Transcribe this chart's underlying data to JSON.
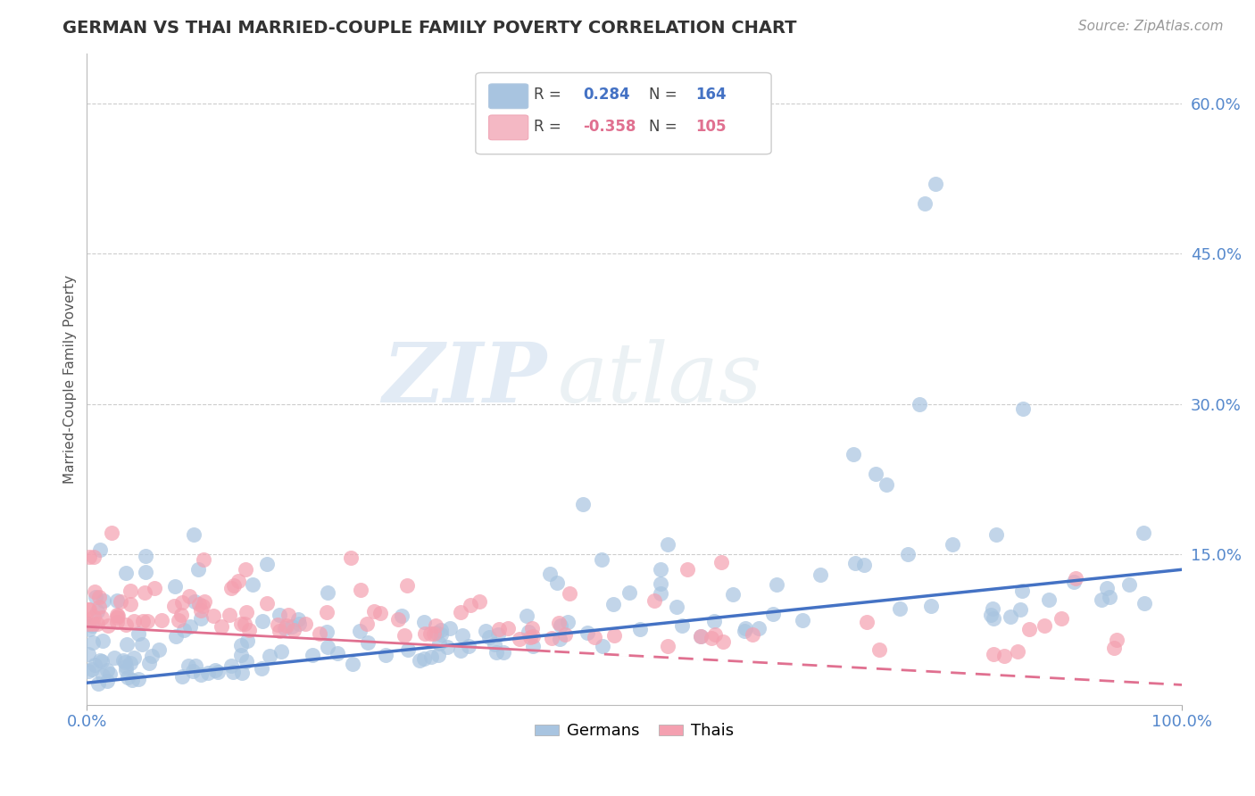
{
  "title": "GERMAN VS THAI MARRIED-COUPLE FAMILY POVERTY CORRELATION CHART",
  "source": "Source: ZipAtlas.com",
  "ylabel": "Married-Couple Family Poverty",
  "xlim": [
    0.0,
    1.0
  ],
  "ylim": [
    0.0,
    0.65
  ],
  "ytick_positions": [
    0.15,
    0.3,
    0.45,
    0.6
  ],
  "yticklabels": [
    "15.0%",
    "30.0%",
    "45.0%",
    "60.0%"
  ],
  "german_R": 0.284,
  "german_N": 164,
  "thai_R": -0.358,
  "thai_N": 105,
  "german_color": "#a8c4e0",
  "thai_color": "#f4a0b0",
  "german_line_color": "#4472c4",
  "thai_line_color": "#e07090",
  "legend_color_german": "#a8c4e0",
  "legend_color_thai": "#f4b8c4",
  "watermark_zip": "ZIP",
  "watermark_atlas": "atlas",
  "background_color": "#ffffff",
  "grid_color": "#c8c8c8",
  "title_color": "#333333",
  "axis_label_color": "#555555",
  "tick_label_color": "#5588cc"
}
